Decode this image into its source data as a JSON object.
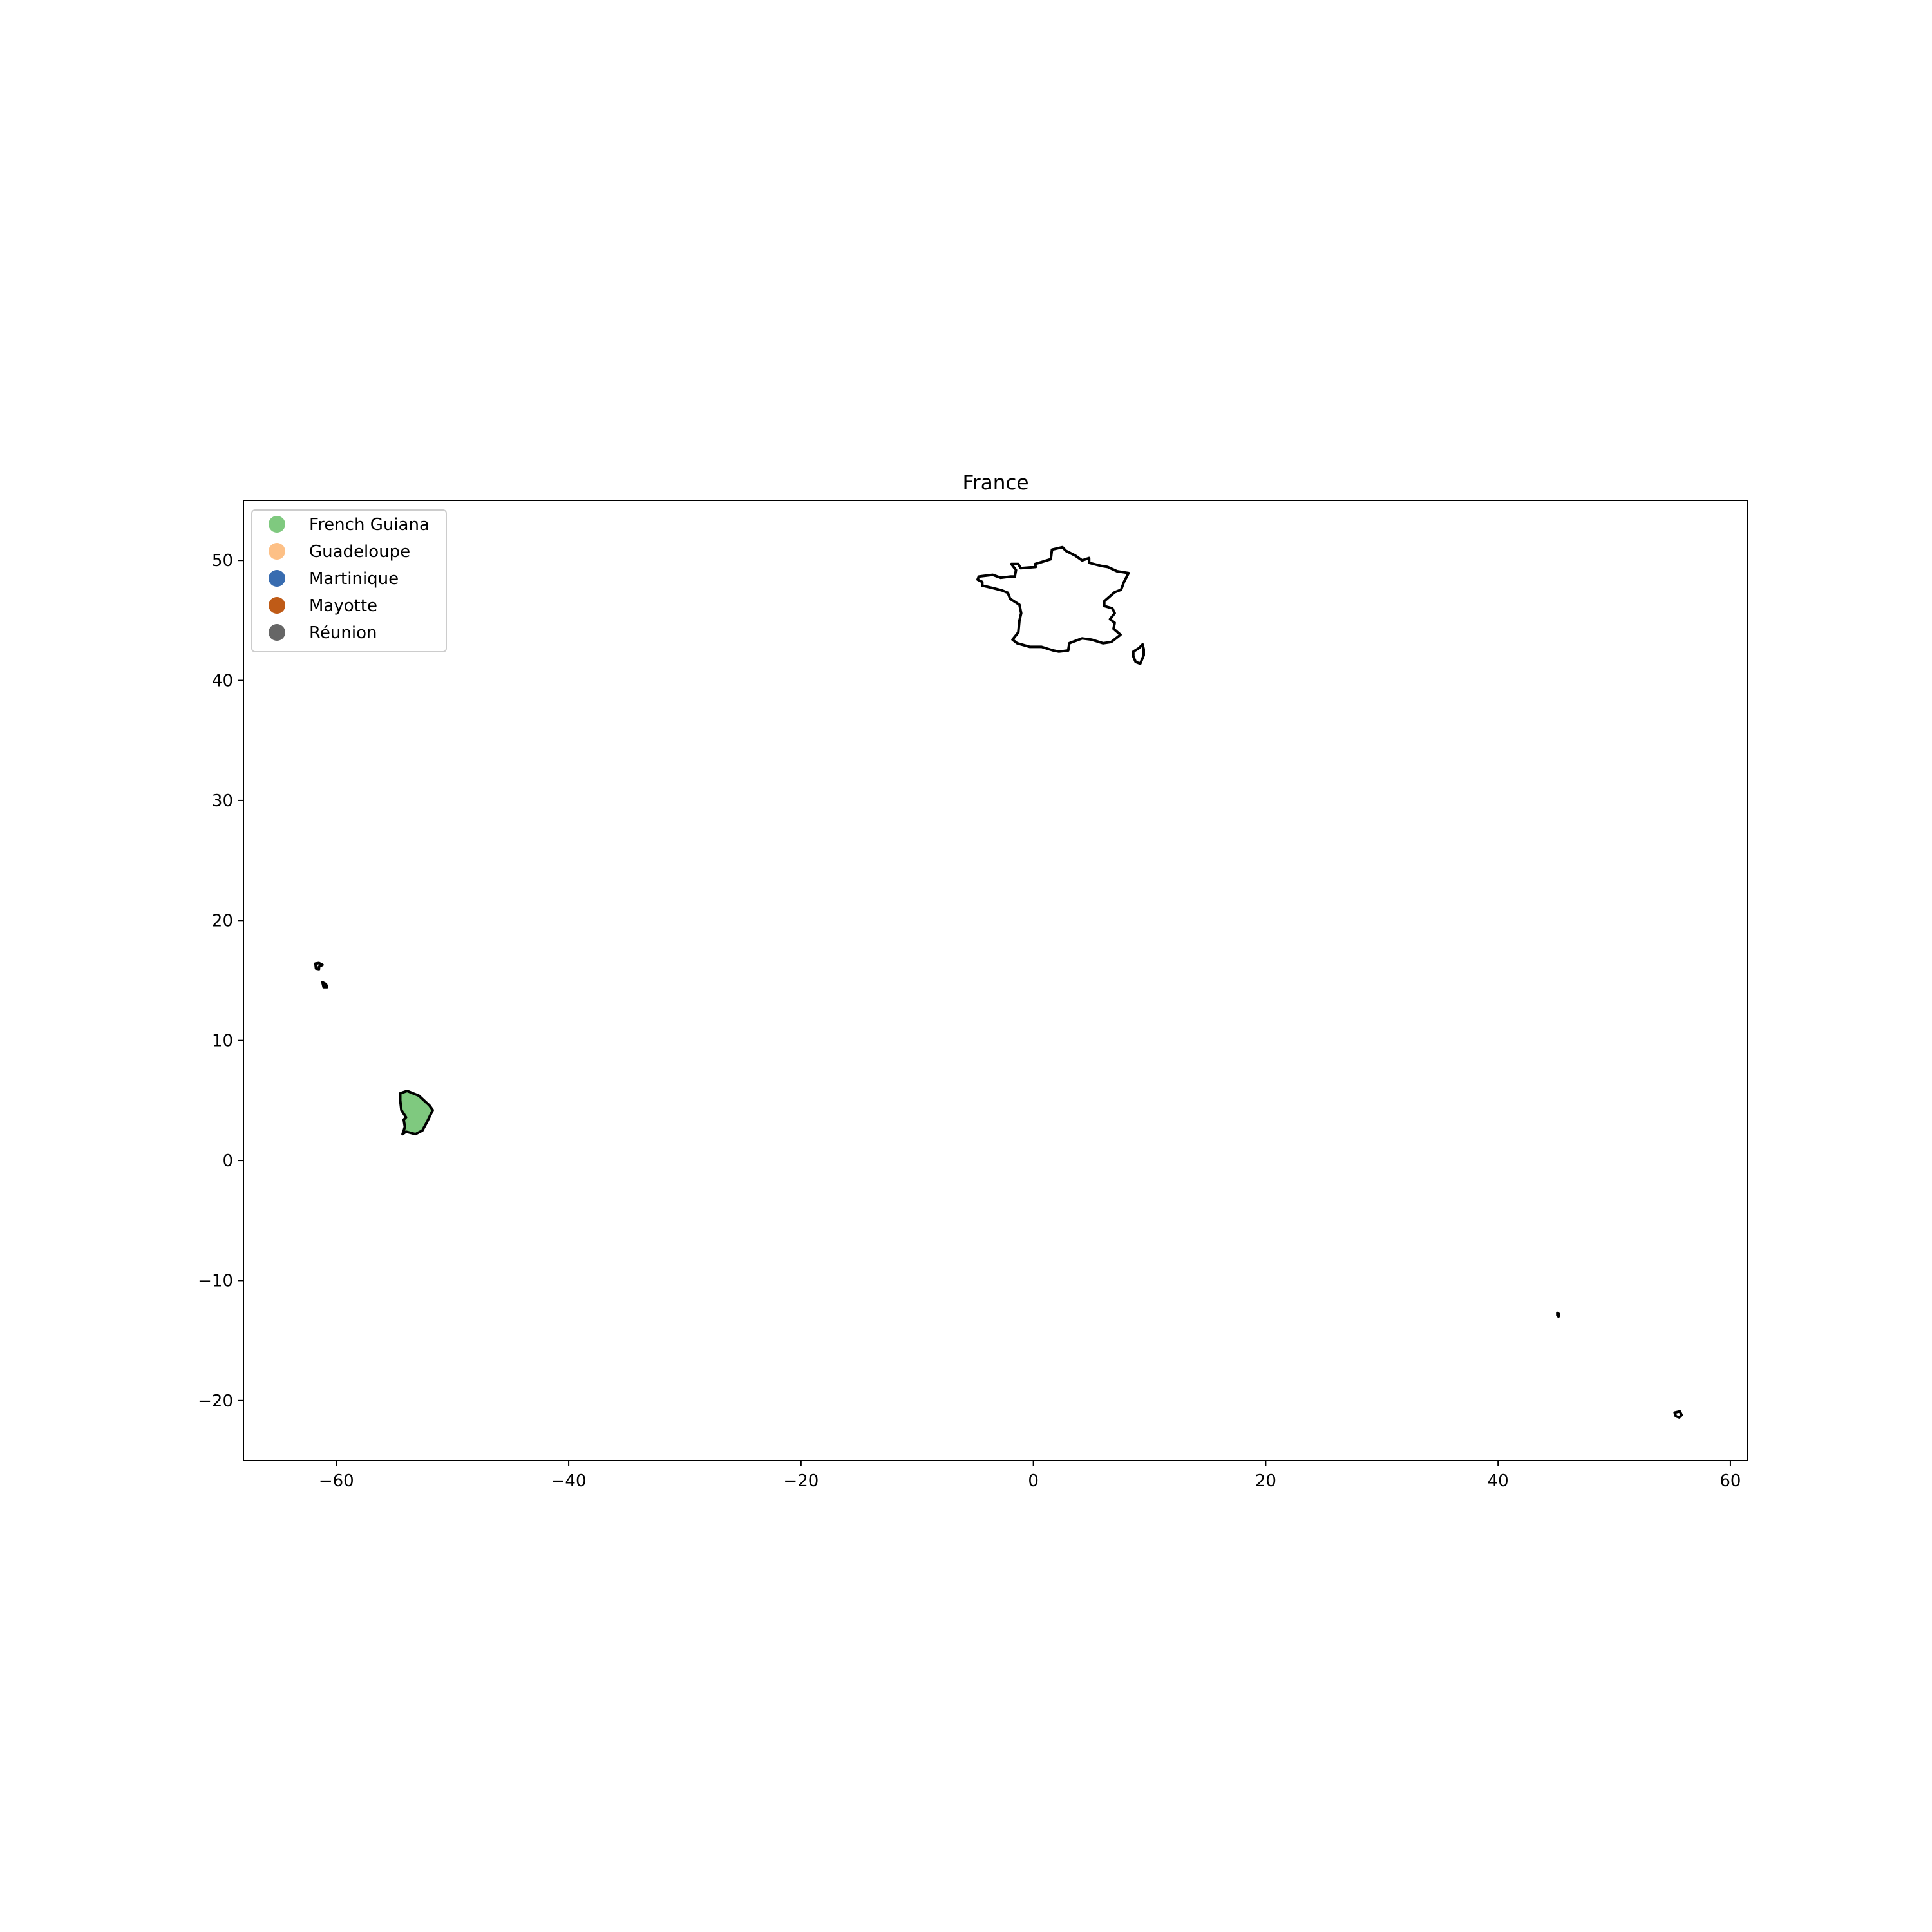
{
  "chart_data": {
    "type": "map",
    "title": "France",
    "xlim": [
      -68,
      61.5
    ],
    "ylim": [
      -25,
      55
    ],
    "xticks": [
      {
        "value": -60,
        "label": "−60"
      },
      {
        "value": -40,
        "label": "−40"
      },
      {
        "value": -20,
        "label": "−20"
      },
      {
        "value": 0,
        "label": "0"
      },
      {
        "value": 20,
        "label": "20"
      },
      {
        "value": 40,
        "label": "40"
      },
      {
        "value": 60,
        "label": "60"
      }
    ],
    "yticks": [
      {
        "value": 50,
        "label": "50"
      },
      {
        "value": 40,
        "label": "40"
      },
      {
        "value": 30,
        "label": "30"
      },
      {
        "value": 20,
        "label": "20"
      },
      {
        "value": 10,
        "label": "10"
      },
      {
        "value": 0,
        "label": "0"
      },
      {
        "value": -10,
        "label": "−10"
      },
      {
        "value": -20,
        "label": "−20"
      }
    ],
    "grid": false,
    "legend_position": "top-left",
    "legend": [
      {
        "name": "French Guiana",
        "color": "#7fc97f"
      },
      {
        "name": "Guadeloupe",
        "color": "#fdc086"
      },
      {
        "name": "Martinique",
        "color": "#386cb0"
      },
      {
        "name": "Mayotte",
        "color": "#bf5b17"
      },
      {
        "name": "Réunion",
        "color": "#666666"
      }
    ],
    "regions": [
      {
        "id": "metropolitan-france",
        "fill": "none",
        "coords": [
          [
            -4.8,
            48.4
          ],
          [
            -4.7,
            48.65
          ],
          [
            -3.5,
            48.8
          ],
          [
            -2.8,
            48.55
          ],
          [
            -2.0,
            48.65
          ],
          [
            -1.6,
            48.65
          ],
          [
            -1.5,
            49.2
          ],
          [
            -1.9,
            49.7
          ],
          [
            -1.3,
            49.7
          ],
          [
            -1.1,
            49.35
          ],
          [
            0.2,
            49.45
          ],
          [
            0.15,
            49.7
          ],
          [
            1.5,
            50.1
          ],
          [
            1.6,
            50.9
          ],
          [
            2.5,
            51.1
          ],
          [
            2.8,
            50.8
          ],
          [
            3.6,
            50.4
          ],
          [
            4.2,
            50.0
          ],
          [
            4.8,
            50.2
          ],
          [
            4.8,
            49.8
          ],
          [
            5.8,
            49.55
          ],
          [
            6.4,
            49.45
          ],
          [
            7.2,
            49.1
          ],
          [
            8.2,
            48.95
          ],
          [
            7.8,
            48.2
          ],
          [
            7.55,
            47.55
          ],
          [
            7.0,
            47.35
          ],
          [
            6.1,
            46.6
          ],
          [
            6.1,
            46.2
          ],
          [
            6.8,
            46.0
          ],
          [
            7.0,
            45.6
          ],
          [
            6.6,
            45.1
          ],
          [
            7.0,
            44.8
          ],
          [
            6.9,
            44.3
          ],
          [
            7.5,
            43.8
          ],
          [
            6.7,
            43.2
          ],
          [
            6.0,
            43.1
          ],
          [
            5.0,
            43.4
          ],
          [
            4.2,
            43.5
          ],
          [
            3.1,
            43.1
          ],
          [
            3.0,
            42.5
          ],
          [
            2.2,
            42.4
          ],
          [
            1.7,
            42.5
          ],
          [
            0.7,
            42.8
          ],
          [
            -0.3,
            42.8
          ],
          [
            -1.4,
            43.1
          ],
          [
            -1.8,
            43.4
          ],
          [
            -1.3,
            44.0
          ],
          [
            -1.2,
            45.0
          ],
          [
            -1.05,
            45.6
          ],
          [
            -1.2,
            46.3
          ],
          [
            -2.0,
            46.8
          ],
          [
            -2.2,
            47.3
          ],
          [
            -2.7,
            47.5
          ],
          [
            -3.5,
            47.7
          ],
          [
            -4.4,
            47.9
          ],
          [
            -4.4,
            48.2
          ],
          [
            -4.8,
            48.4
          ]
        ]
      },
      {
        "id": "corsica",
        "fill": "none",
        "coords": [
          [
            9.4,
            43.0
          ],
          [
            9.5,
            42.6
          ],
          [
            9.5,
            42.1
          ],
          [
            9.2,
            41.4
          ],
          [
            8.8,
            41.55
          ],
          [
            8.6,
            42.0
          ],
          [
            8.6,
            42.4
          ],
          [
            9.1,
            42.7
          ],
          [
            9.4,
            43.0
          ]
        ]
      },
      {
        "id": "french-guiana",
        "fill": "#7fc97f",
        "coords": [
          [
            -54.5,
            5.6
          ],
          [
            -53.9,
            5.8
          ],
          [
            -52.9,
            5.4
          ],
          [
            -52.0,
            4.6
          ],
          [
            -51.7,
            4.2
          ],
          [
            -52.2,
            3.2
          ],
          [
            -52.6,
            2.5
          ],
          [
            -53.2,
            2.2
          ],
          [
            -54.0,
            2.4
          ],
          [
            -54.3,
            2.2
          ],
          [
            -54.1,
            2.8
          ],
          [
            -54.2,
            3.4
          ],
          [
            -54.0,
            3.6
          ],
          [
            -54.4,
            4.2
          ],
          [
            -54.5,
            5.0
          ],
          [
            -54.5,
            5.6
          ]
        ]
      },
      {
        "id": "guadeloupe",
        "fill": "none",
        "coords": [
          [
            -61.8,
            16.4
          ],
          [
            -61.5,
            16.45
          ],
          [
            -61.2,
            16.3
          ],
          [
            -61.5,
            16.15
          ],
          [
            -61.5,
            15.95
          ],
          [
            -61.75,
            16.0
          ],
          [
            -61.8,
            16.4
          ]
        ]
      },
      {
        "id": "martinique",
        "fill": "none",
        "coords": [
          [
            -61.2,
            14.85
          ],
          [
            -60.9,
            14.7
          ],
          [
            -60.8,
            14.45
          ],
          [
            -61.1,
            14.45
          ],
          [
            -61.2,
            14.85
          ]
        ]
      },
      {
        "id": "mayotte",
        "fill": "none",
        "coords": [
          [
            45.1,
            -12.7
          ],
          [
            45.25,
            -12.8
          ],
          [
            45.2,
            -13.0
          ],
          [
            45.1,
            -12.9
          ],
          [
            45.1,
            -12.7
          ]
        ]
      },
      {
        "id": "reunion",
        "fill": "none",
        "coords": [
          [
            55.2,
            -21.0
          ],
          [
            55.65,
            -20.9
          ],
          [
            55.8,
            -21.2
          ],
          [
            55.6,
            -21.4
          ],
          [
            55.3,
            -21.3
          ],
          [
            55.2,
            -21.0
          ]
        ]
      }
    ]
  }
}
